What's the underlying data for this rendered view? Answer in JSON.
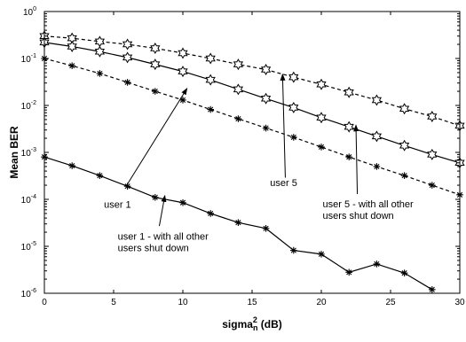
{
  "chart_data": {
    "type": "line",
    "title": "",
    "xlabel": "sigma",
    "xlabel_sub": "n",
    "xlabel_sup": "2",
    "xlabel_unit": " (dB)",
    "ylabel": "Mean BER",
    "xlim": [
      0,
      30
    ],
    "ylim": [
      1e-06,
      1
    ],
    "yscale": "log",
    "grid": false,
    "x_ticks": [
      0,
      5,
      10,
      15,
      20,
      25,
      30
    ],
    "x_tick_labels": [
      "0",
      "5",
      "10",
      "15",
      "20",
      "25",
      "30"
    ],
    "y_ticks": [
      {
        "value": 1,
        "base": "10",
        "exp": "0"
      },
      {
        "value": 0.1,
        "base": "10",
        "exp": "-1"
      },
      {
        "value": 0.01,
        "base": "10",
        "exp": "-2"
      },
      {
        "value": 0.001,
        "base": "10",
        "exp": "-3"
      },
      {
        "value": 0.0001,
        "base": "10",
        "exp": "-4"
      },
      {
        "value": 1e-05,
        "base": "10",
        "exp": "-5"
      },
      {
        "value": 1e-06,
        "base": "10",
        "exp": "-6"
      }
    ],
    "series": [
      {
        "id": "user5",
        "line_style": "dashed",
        "marker": "hexagram",
        "color": "#000000",
        "x": [
          0,
          2,
          4,
          6,
          8,
          10,
          12,
          14,
          16,
          18,
          20,
          22,
          24,
          26,
          28,
          30
        ],
        "y": [
          0.3,
          0.27,
          0.23,
          0.2,
          0.165,
          0.13,
          0.1,
          0.075,
          0.058,
          0.04,
          0.028,
          0.019,
          0.013,
          0.0085,
          0.0058,
          0.0037
        ]
      },
      {
        "id": "user1",
        "line_style": "solid",
        "marker": "hexagram",
        "color": "#000000",
        "x": [
          0,
          2,
          4,
          6,
          8,
          10,
          12,
          14,
          16,
          18,
          20,
          22,
          24,
          26,
          28,
          30
        ],
        "y": [
          0.22,
          0.18,
          0.14,
          0.105,
          0.075,
          0.053,
          0.035,
          0.022,
          0.014,
          0.009,
          0.0055,
          0.0035,
          0.0022,
          0.0014,
          0.0009,
          0.0006
        ]
      },
      {
        "id": "user5_alone",
        "line_style": "dashed",
        "marker": "asterisk",
        "color": "#000000",
        "x": [
          0,
          2,
          4,
          6,
          8,
          10,
          12,
          14,
          16,
          18,
          20,
          22,
          24,
          26,
          28,
          30
        ],
        "y": [
          0.1,
          0.07,
          0.048,
          0.031,
          0.02,
          0.013,
          0.0082,
          0.0052,
          0.0033,
          0.0021,
          0.0013,
          0.0008,
          0.0005,
          0.00032,
          0.0002,
          0.000125
        ]
      },
      {
        "id": "user1_alone",
        "line_style": "solid",
        "marker": "asterisk",
        "color": "#000000",
        "x": [
          0,
          2,
          4,
          6,
          8,
          10,
          12,
          14,
          16,
          18,
          20,
          22,
          24,
          26,
          28
        ],
        "y": [
          0.0008,
          0.00052,
          0.00032,
          0.00019,
          0.00011,
          8.5e-05,
          5e-05,
          3.2e-05,
          2.4e-05,
          8.2e-06,
          6.8e-06,
          2.8e-06,
          4.2e-06,
          2.7e-06,
          1.2e-06
        ]
      }
    ],
    "annotations": [
      {
        "lines": [
          "user 1"
        ],
        "text_x": 4.3,
        "text_y": 6.6e-05,
        "anchor": "start",
        "arrow_from": [
          5.9,
          0.00019
        ],
        "arrow_to": [
          10.3,
          0.023
        ]
      },
      {
        "lines": [
          "user 5"
        ],
        "text_x": 16.3,
        "text_y": 0.00019,
        "anchor": "start",
        "arrow_from": [
          17.4,
          0.00029
        ],
        "arrow_to": [
          17.2,
          0.046
        ]
      },
      {
        "lines": [
          "user 5 - with all other",
          "users shut down"
        ],
        "text_x": 20.1,
        "text_y": 6.8e-05,
        "anchor": "start",
        "arrow_from": [
          22.6,
          0.00013
        ],
        "arrow_to": [
          22.5,
          0.0038
        ]
      },
      {
        "lines": [
          "user 1 - with all other",
          "users shut down"
        ],
        "text_x": 5.3,
        "text_y": 1.4e-05,
        "anchor": "start",
        "arrow_from": [
          8.3,
          2.7e-05
        ],
        "arrow_to": [
          8.7,
          0.00012
        ]
      }
    ]
  }
}
